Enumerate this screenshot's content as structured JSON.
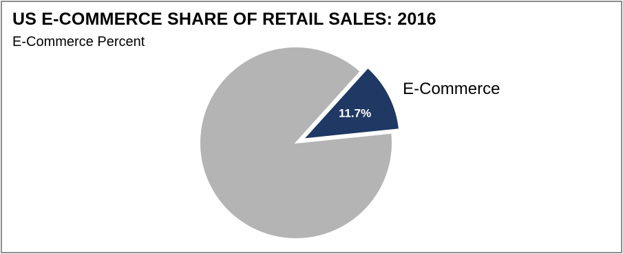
{
  "chart_data": {
    "type": "pie",
    "title": "US E-COMMERCE SHARE OF RETAIL SALES: 2016",
    "subtitle": "E-Commerce Percent",
    "slices": [
      {
        "name": "E-Commerce",
        "value": 11.7,
        "label": "11.7%",
        "color": "#1f3864",
        "exploded": true,
        "label_color": "#ffffff"
      },
      {
        "name": "",
        "value": 88.3,
        "label": "",
        "color": "#b4b4b4",
        "exploded": false
      }
    ]
  }
}
